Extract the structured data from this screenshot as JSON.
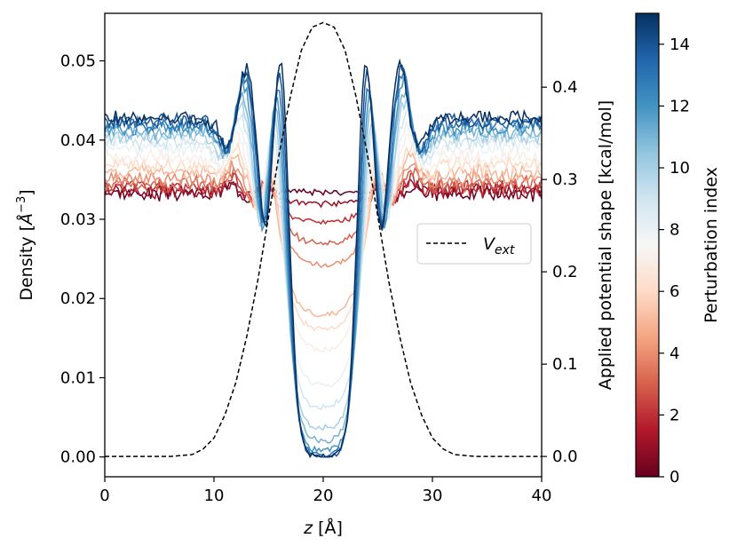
{
  "chart_data": {
    "type": "line",
    "xlabel_var": "z",
    "xlabel_unit": " [Å]",
    "ylabel_left_pre": "Density [",
    "ylabel_left_unit": "Å",
    "ylabel_left_exp": "−3",
    "ylabel_left_post": "]",
    "ylabel_right": "Applied potential shape [kcal/mol]",
    "colorbar_label": "Perturbation index",
    "xlim": [
      0,
      40
    ],
    "ylim_left": [
      -0.0025,
      0.056
    ],
    "ylim_right": [
      -0.022,
      0.48
    ],
    "x_ticks": [
      0,
      10,
      20,
      30,
      40
    ],
    "y_left_ticks": [
      "0.00",
      "0.01",
      "0.02",
      "0.03",
      "0.04",
      "0.05"
    ],
    "y_left_tick_values": [
      0.0,
      0.01,
      0.02,
      0.03,
      0.04,
      0.05
    ],
    "y_right_ticks": [
      "0.0",
      "0.1",
      "0.2",
      "0.3",
      "0.4"
    ],
    "y_right_tick_values": [
      0.0,
      0.1,
      0.2,
      0.3,
      0.4
    ],
    "colorbar_ticks": [
      "0",
      "2",
      "4",
      "6",
      "8",
      "10",
      "12",
      "14"
    ],
    "colorbar_range": [
      0,
      15
    ],
    "legend": {
      "label_base": "V",
      "label_sub": "ext",
      "style": "dashed",
      "position": "center-right"
    },
    "potential": {
      "name": "V_ext",
      "z": [
        0,
        6,
        8,
        9,
        10,
        11,
        12,
        13,
        14,
        15,
        16,
        17,
        18,
        19,
        20,
        21,
        22,
        23,
        24,
        25,
        26,
        27,
        28,
        29,
        30,
        31,
        32,
        34,
        40
      ],
      "value": [
        0.0,
        0.0,
        0.002,
        0.008,
        0.02,
        0.045,
        0.08,
        0.13,
        0.19,
        0.26,
        0.33,
        0.39,
        0.44,
        0.465,
        0.47,
        0.465,
        0.44,
        0.39,
        0.33,
        0.26,
        0.19,
        0.13,
        0.08,
        0.045,
        0.02,
        0.008,
        0.002,
        0.0,
        0.0
      ]
    },
    "density_series": {
      "count": 16,
      "bulk_density": [
        0.0333,
        0.0336,
        0.034,
        0.0345,
        0.0352,
        0.036,
        0.0368,
        0.0378,
        0.039,
        0.0398,
        0.0405,
        0.041,
        0.0415,
        0.042,
        0.0424,
        0.0427
      ],
      "center_density": [
        0.0335,
        0.032,
        0.0296,
        0.027,
        0.0242,
        0.0178,
        0.016,
        0.0135,
        0.009,
        0.0062,
        0.0035,
        0.002,
        0.0008,
        0.0002,
        0.0,
        0.0
      ],
      "peak_main_density": [
        0.0345,
        0.035,
        0.036,
        0.037,
        0.0385,
        0.04,
        0.0415,
        0.043,
        0.045,
        0.047,
        0.0485,
        0.0495,
        0.0505,
        0.0515,
        0.0525,
        0.0533
      ],
      "peak_secondary_density": [
        0.0342,
        0.0346,
        0.0352,
        0.036,
        0.037,
        0.038,
        0.0392,
        0.0405,
        0.042,
        0.0435,
        0.045,
        0.0462,
        0.0475,
        0.0485,
        0.0492,
        0.0495
      ],
      "dip_density": [
        0.033,
        0.033,
        0.033,
        0.033,
        0.033,
        0.033,
        0.033,
        0.033,
        0.0326,
        0.0322,
        0.0318,
        0.0315,
        0.0313,
        0.0312,
        0.0311,
        0.031
      ]
    },
    "colormap": "RdBu",
    "colormap_stops": [
      "#67001f",
      "#b2182b",
      "#d6604d",
      "#f4a582",
      "#fddbc7",
      "#f7f7f7",
      "#d1e5f0",
      "#92c5de",
      "#4393c3",
      "#2166ac",
      "#053061"
    ]
  }
}
